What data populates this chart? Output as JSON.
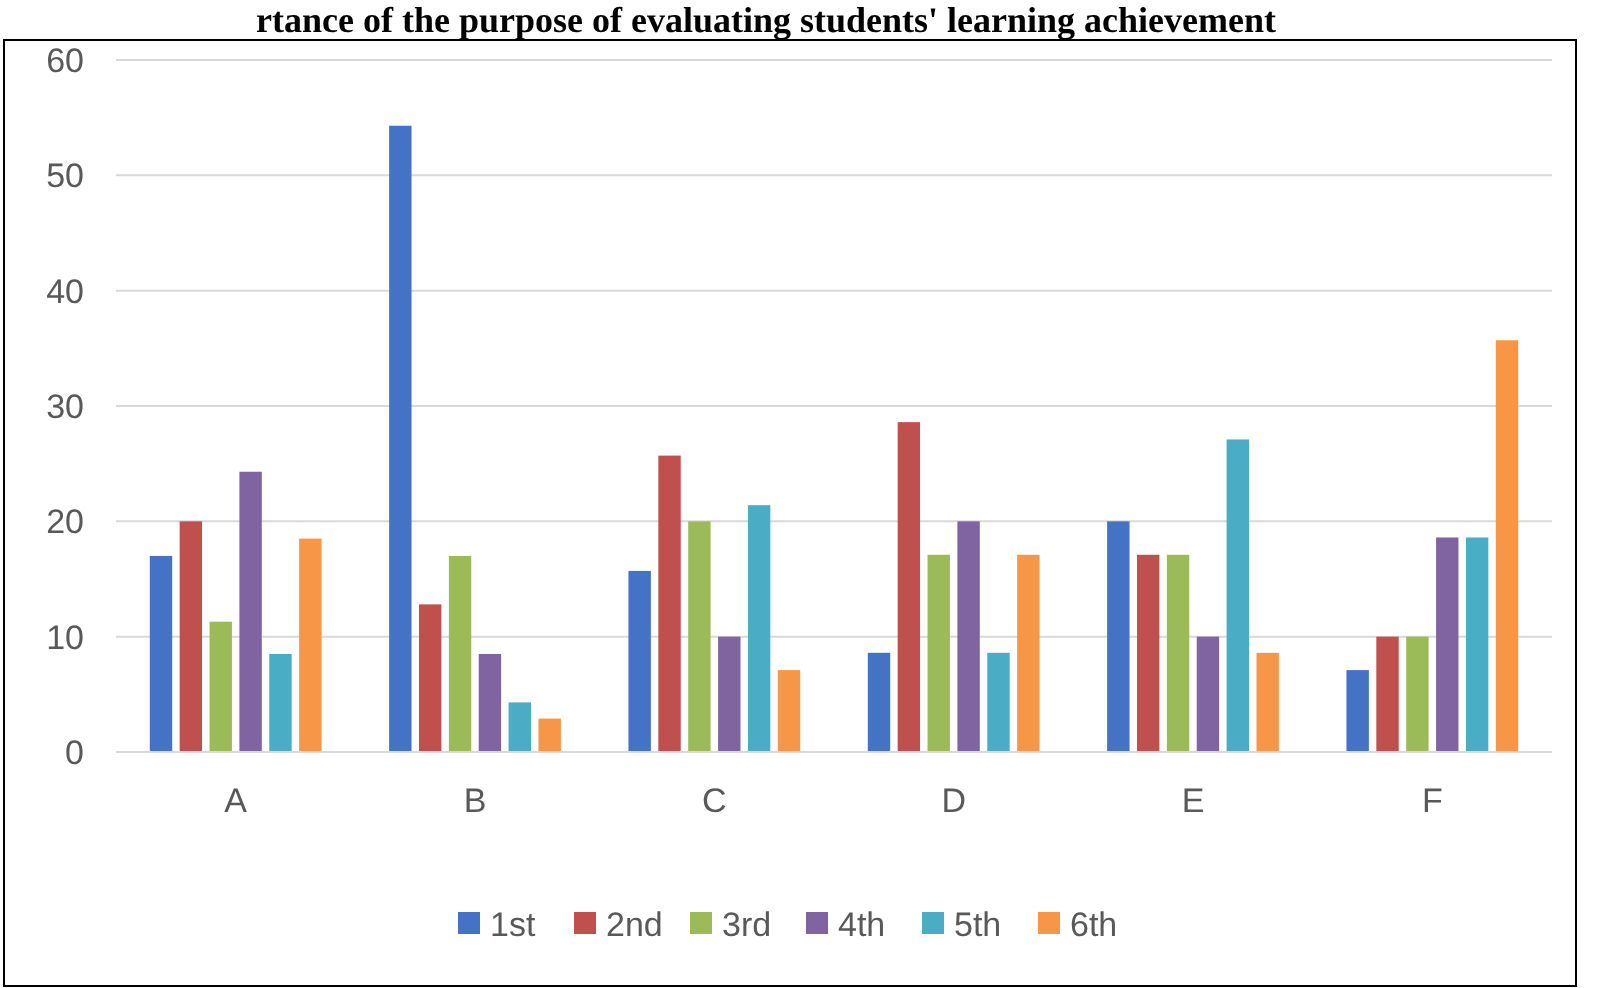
{
  "chart_data": {
    "type": "bar",
    "title": "rtance of the purpose of evaluating students' learning achievement",
    "categories": [
      "A",
      "B",
      "C",
      "D",
      "E",
      "F"
    ],
    "series": [
      {
        "name": "1st",
        "color": "#4472c4",
        "values": [
          17,
          54.3,
          15.7,
          8.6,
          20,
          7.1
        ]
      },
      {
        "name": "2nd",
        "color": "#c0504d",
        "values": [
          20,
          12.8,
          25.7,
          28.6,
          17.1,
          10
        ]
      },
      {
        "name": "3rd",
        "color": "#9bbb59",
        "values": [
          11.3,
          17,
          20,
          17.1,
          17.1,
          10
        ]
      },
      {
        "name": "4th",
        "color": "#8064a2",
        "values": [
          24.3,
          8.5,
          10,
          20,
          10,
          18.6
        ]
      },
      {
        "name": "5th",
        "color": "#4bacc6",
        "values": [
          8.5,
          4.3,
          21.4,
          8.6,
          27.1,
          18.6
        ]
      },
      {
        "name": "6th",
        "color": "#f79646",
        "values": [
          18.5,
          2.9,
          7.1,
          17.1,
          8.6,
          35.7
        ]
      }
    ],
    "ylim": [
      0,
      60
    ],
    "yticks": [
      0,
      10,
      20,
      30,
      40,
      50,
      60
    ],
    "grid": "y",
    "legend": "bottom"
  }
}
